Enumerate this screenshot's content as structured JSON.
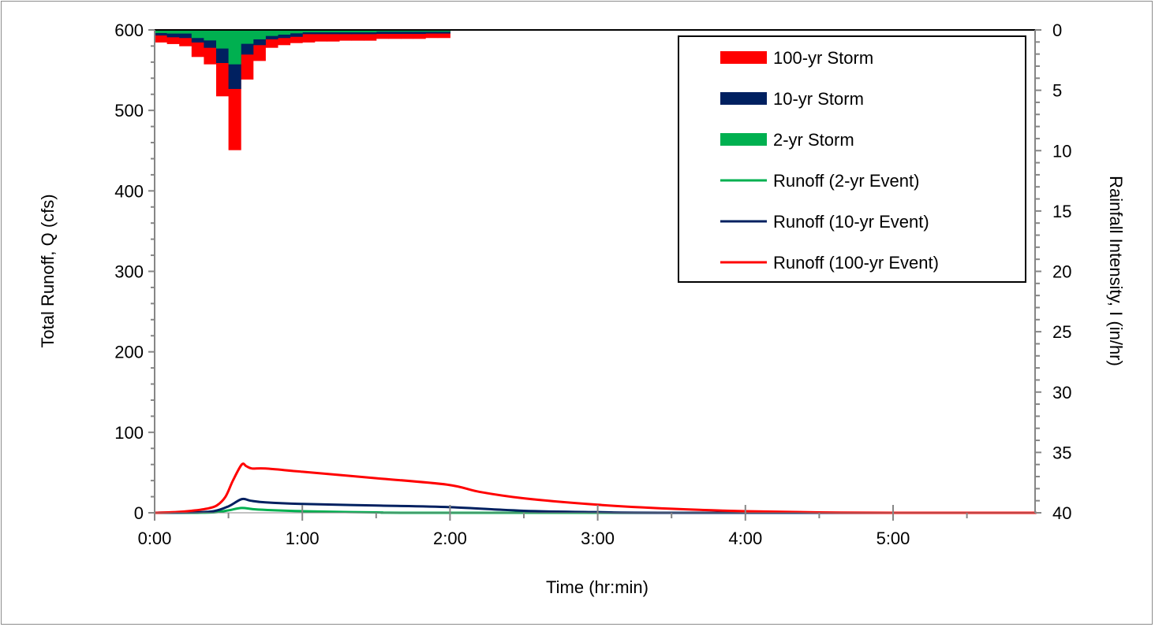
{
  "chart_data": {
    "type": "line",
    "title": "",
    "xlabel": "Time (hr:min)",
    "ylabel": "Total Runoff, Q (cfs)",
    "y2label": "Rainfall Intensity, I (in/hr)",
    "xlim_hours": [
      0,
      5.97
    ],
    "ylim": [
      0,
      600
    ],
    "y2lim": [
      40,
      0
    ],
    "y2_inverted": true,
    "grid": false,
    "legend_placement": "top-right",
    "x_ticks": [
      "0:00",
      "1:00",
      "2:00",
      "3:00",
      "4:00",
      "5:00"
    ],
    "y_ticks": [
      "0",
      "100",
      "200",
      "300",
      "400",
      "500",
      "600"
    ],
    "y2_ticks": [
      "0",
      "5",
      "10",
      "15",
      "20",
      "25",
      "30",
      "35",
      "40"
    ],
    "hyetograph": {
      "interval_minutes": 5,
      "series": [
        {
          "name": "100-yr Storm",
          "color": "#ff0000",
          "values": [
            1.04,
            1.17,
            1.35,
            2.24,
            2.85,
            5.5,
            9.96,
            4.11,
            2.57,
            1.48,
            1.26,
            1.09,
            1.04,
            0.96,
            0.96,
            0.89,
            0.89,
            0.89,
            0.74,
            0.74,
            0.74,
            0.74,
            0.67,
            0.67
          ]
        },
        {
          "name": "10-yr Storm",
          "color": "#002060",
          "values": [
            0.46,
            0.61,
            0.67,
            1.04,
            1.48,
            2.74,
            4.89,
            2.04,
            1.26,
            0.78,
            0.67,
            0.57,
            0.35,
            0.35,
            0.35,
            0.35,
            0.35,
            0.35,
            0.33,
            0.33,
            0.33,
            0.33,
            0.3,
            0.3
          ]
        },
        {
          "name": "2-yr Storm",
          "color": "#00b050",
          "values": [
            0.26,
            0.3,
            0.3,
            0.67,
            0.87,
            1.54,
            2.85,
            1.15,
            0.78,
            0.5,
            0.39,
            0.28,
            0.2,
            0.2,
            0.2,
            0.2,
            0.2,
            0.2,
            0.15,
            0.15,
            0.15,
            0.15,
            0.15,
            0.15
          ]
        }
      ]
    },
    "runoff": {
      "series": [
        {
          "name": "Runoff (2-yr Event)",
          "color": "#00b050",
          "x_hours": [
            0,
            0.25,
            0.4,
            0.5,
            0.59,
            0.7,
            1.0,
            1.5,
            2.0,
            5.97
          ],
          "values": [
            0,
            0,
            0.5,
            3,
            6,
            4,
            2,
            0.5,
            0,
            0
          ]
        },
        {
          "name": "Runoff (10-yr Event)",
          "color": "#002060",
          "x_hours": [
            0,
            0.25,
            0.4,
            0.5,
            0.59,
            0.65,
            0.75,
            1.0,
            1.5,
            2.0,
            2.5,
            3.0,
            3.5,
            5.97
          ],
          "values": [
            0,
            0.5,
            2,
            8,
            17,
            15,
            13,
            11,
            9,
            7,
            2.5,
            0.8,
            0,
            0
          ]
        },
        {
          "name": "Runoff (100-yr Event)",
          "color": "#ff0000",
          "x_hours": [
            0,
            0.15,
            0.25,
            0.35,
            0.42,
            0.48,
            0.53,
            0.59,
            0.62,
            0.66,
            0.75,
            1.0,
            1.5,
            1.98,
            2.2,
            2.5,
            3.0,
            3.5,
            4.0,
            4.5,
            5.0,
            5.97
          ],
          "values": [
            0,
            1,
            2.5,
            5,
            9,
            20,
            40,
            60,
            58,
            55,
            55,
            51,
            43,
            35,
            26,
            18,
            10,
            5,
            2,
            0.5,
            0,
            0
          ]
        }
      ]
    }
  }
}
